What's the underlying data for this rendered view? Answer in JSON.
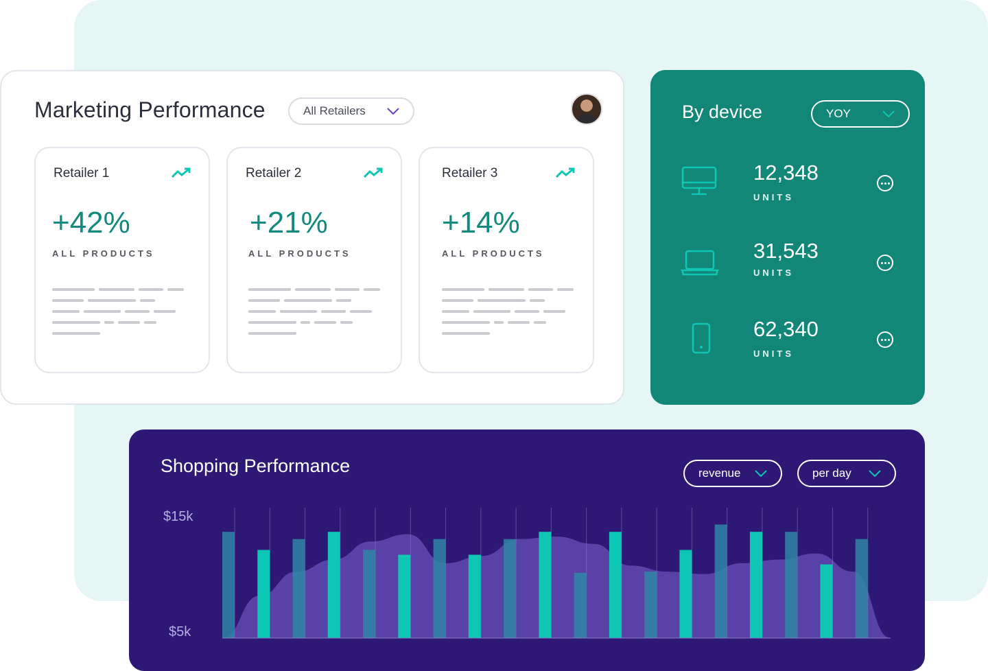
{
  "marketing": {
    "title": "Marketing Performance",
    "filter": "All Retailers",
    "avatar": "user-avatar",
    "retailers": [
      {
        "name": "Retailer 1",
        "change": "+42%",
        "subtitle": "ALL PRODUCTS",
        "icon": "trending-up-icon"
      },
      {
        "name": "Retailer 2",
        "change": "+21%",
        "subtitle": "ALL PRODUCTS",
        "icon": "trending-up-icon"
      },
      {
        "name": "Retailer 3",
        "change": "+14%",
        "subtitle": "ALL PRODUCTS",
        "icon": "trending-up-icon"
      }
    ]
  },
  "device": {
    "title": "By device",
    "period": "YOY",
    "rows": [
      {
        "icon": "desktop-icon",
        "value": "12,348",
        "unit": "UNITS"
      },
      {
        "icon": "laptop-icon",
        "value": "31,543",
        "unit": "UNITS"
      },
      {
        "icon": "mobile-icon",
        "value": "62,340",
        "unit": "UNITS"
      }
    ]
  },
  "shopping": {
    "title": "Shopping Performance",
    "metric": "revenue",
    "interval": "per day",
    "yticks": [
      "$15k",
      "$5k"
    ]
  },
  "colors": {
    "accent": "#0ec6b4",
    "teal": "#128677",
    "purple": "#2e1875",
    "backdrop": "#e5f6f5"
  },
  "chart_data": {
    "type": "bar",
    "ylim": [
      5000,
      15000
    ],
    "series": [
      {
        "values": [
          13800,
          12300,
          13200,
          13800,
          12300,
          11900,
          13200,
          11900,
          13200,
          13800,
          10400,
          13800,
          10500,
          12300,
          14400,
          13800,
          13800,
          11100,
          13200
        ]
      }
    ],
    "area": [
      5000,
      8500,
      10500,
      11500,
      13000,
      13600,
      11200,
      11800,
      13200,
      13400,
      12800,
      11000,
      10500,
      10300,
      11200,
      11500,
      12000,
      10500,
      5000
    ]
  }
}
